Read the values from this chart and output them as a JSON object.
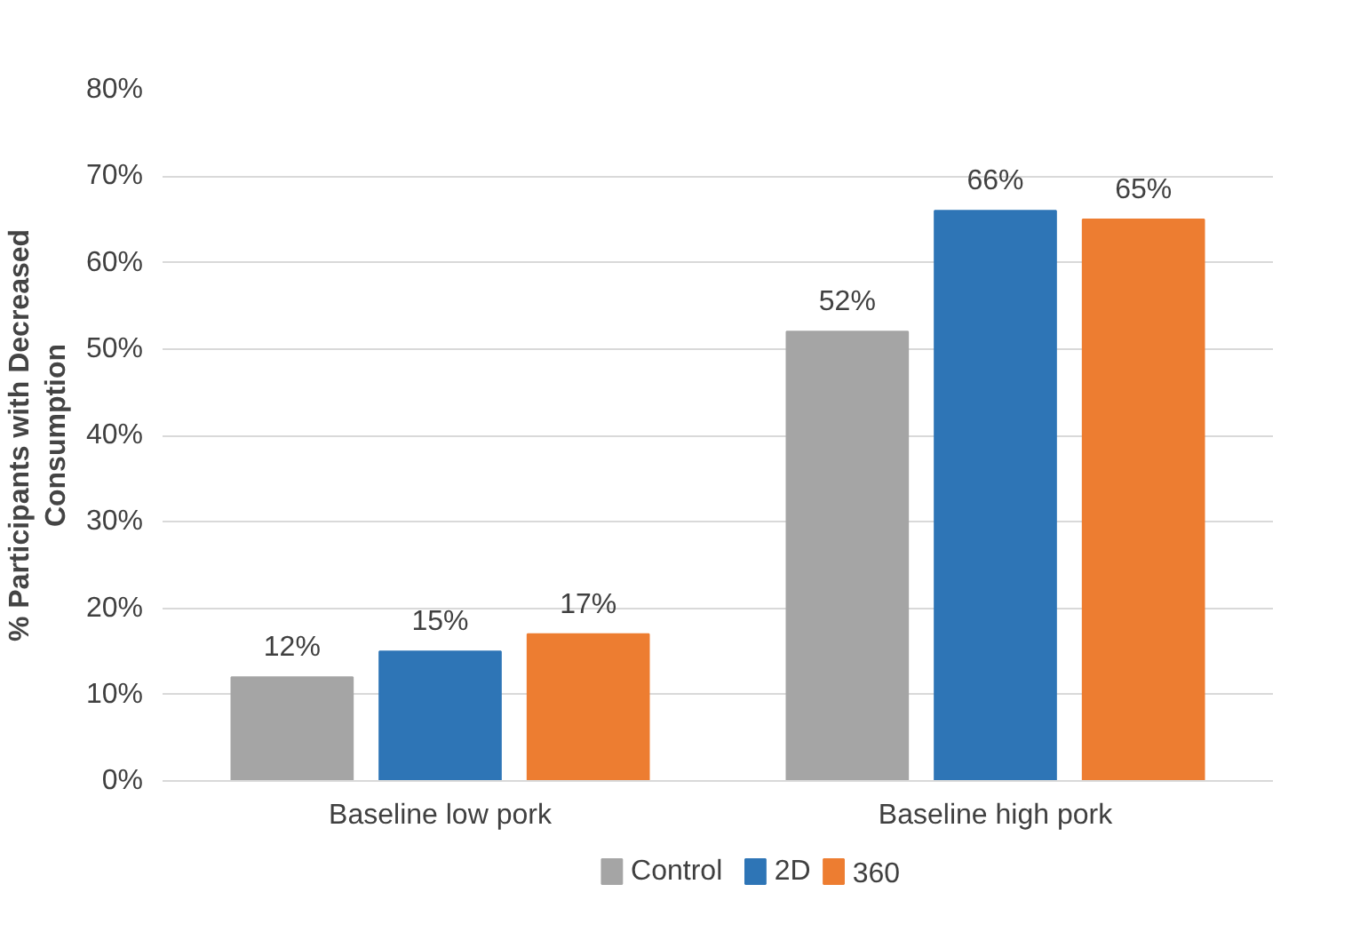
{
  "chart_data": {
    "type": "bar",
    "ylabel": "% Participants with Decreased Consumption",
    "categories": [
      "Baseline low pork",
      "Baseline high pork"
    ],
    "series": [
      {
        "name": "Control",
        "color": "#a5a5a5",
        "values": [
          12,
          52
        ],
        "value_labels": [
          "12%",
          "52%"
        ]
      },
      {
        "name": "2D",
        "color": "#2e75b6",
        "values": [
          15,
          66
        ],
        "value_labels": [
          "15%",
          "66%"
        ]
      },
      {
        "name": "360",
        "color": "#ed7d31",
        "values": [
          17,
          65
        ],
        "value_labels": [
          "17%",
          "65%"
        ]
      }
    ],
    "ylim": [
      0,
      80
    ],
    "yticks": [
      {
        "value": 0,
        "label": "0%"
      },
      {
        "value": 10,
        "label": "10%"
      },
      {
        "value": 20,
        "label": "20%"
      },
      {
        "value": 30,
        "label": "30%"
      },
      {
        "value": 40,
        "label": "40%"
      },
      {
        "value": 50,
        "label": "50%"
      },
      {
        "value": 60,
        "label": "60%"
      },
      {
        "value": 70,
        "label": "70%"
      },
      {
        "value": 80,
        "label": "80%"
      }
    ],
    "grid": "y",
    "legend": "bottom"
  }
}
